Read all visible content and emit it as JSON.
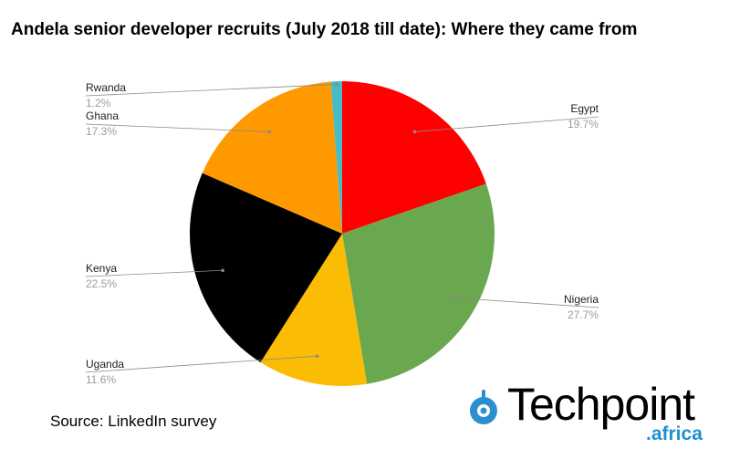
{
  "title": "Andela senior developer recruits (July 2018 till date): Where they came from",
  "source": "Source: LinkedIn survey",
  "logo": {
    "word": "Techpoint",
    "sub": ".africa",
    "icon": "location-pin-icon",
    "accent": "#2a8fce"
  },
  "chart_data": {
    "type": "pie",
    "title": "Andela senior developer recruits (July 2018 till date): Where they came from",
    "start_angle_deg": 0,
    "direction": "clockwise",
    "slices": [
      {
        "name": "Egypt",
        "value": 19.7,
        "label": "19.7%",
        "color": "#ff0000"
      },
      {
        "name": "Nigeria",
        "value": 27.7,
        "label": "27.7%",
        "color": "#6aa84f"
      },
      {
        "name": "Uganda",
        "value": 11.6,
        "label": "11.6%",
        "color": "#fbbc04"
      },
      {
        "name": "Kenya",
        "value": 22.5,
        "label": "22.5%",
        "color": "#000000"
      },
      {
        "name": "Ghana",
        "value": 17.3,
        "label": "17.3%",
        "color": "#ff9900"
      },
      {
        "name": "Rwanda",
        "value": 1.2,
        "label": "1.2%",
        "color": "#46bdc6"
      }
    ]
  }
}
